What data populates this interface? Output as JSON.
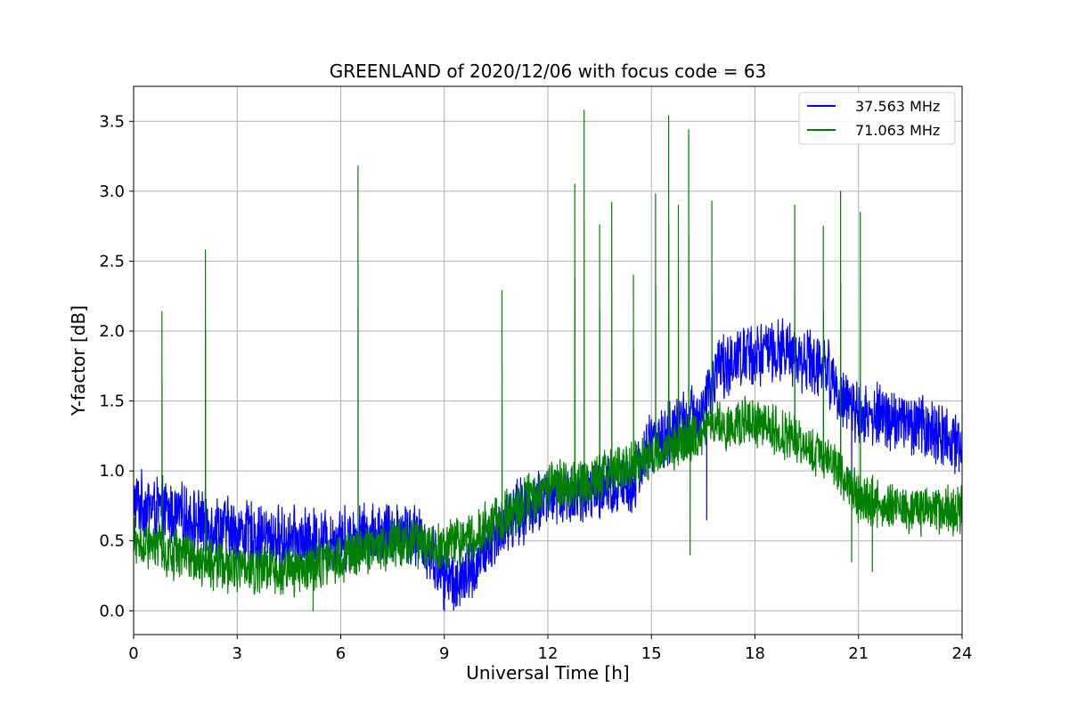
{
  "chart_data": {
    "type": "line",
    "title": "GREENLAND of 2020/12/06 with focus code = 63",
    "xlabel": "Universal Time [h]",
    "ylabel": "Y-factor [dB]",
    "xlim": [
      0,
      24
    ],
    "ylim": [
      -0.17,
      3.75
    ],
    "xticks": [
      0,
      3,
      6,
      9,
      12,
      15,
      18,
      21,
      24
    ],
    "xtick_labels": [
      "0",
      "3",
      "6",
      "9",
      "12",
      "15",
      "18",
      "21",
      "24"
    ],
    "yticks": [
      0.0,
      0.5,
      1.0,
      1.5,
      2.0,
      2.5,
      3.0,
      3.5
    ],
    "ytick_labels": [
      "0.0",
      "0.5",
      "1.0",
      "1.5",
      "2.0",
      "2.5",
      "3.0",
      "3.5"
    ],
    "grid": true,
    "legend_position": "top-right",
    "series": [
      {
        "name": "37.563 MHz",
        "color": "#0000ff",
        "baseline": {
          "x": [
            0,
            1,
            2,
            3,
            4,
            5,
            6,
            7,
            8,
            8.5,
            9,
            9.5,
            10,
            10.5,
            11,
            12,
            13,
            14,
            14.5,
            15,
            16,
            16.5,
            17,
            18,
            19,
            20,
            20.5,
            21,
            22,
            23,
            24
          ],
          "y": [
            0.78,
            0.7,
            0.63,
            0.57,
            0.52,
            0.5,
            0.52,
            0.55,
            0.58,
            0.45,
            0.25,
            0.2,
            0.35,
            0.55,
            0.68,
            0.82,
            0.82,
            0.88,
            0.95,
            1.2,
            1.35,
            1.45,
            1.75,
            1.85,
            1.85,
            1.75,
            1.55,
            1.4,
            1.38,
            1.3,
            1.2
          ]
        },
        "noise_amplitude": 0.26,
        "dips": [
          {
            "x": 16.6,
            "y": 0.65
          },
          {
            "x": 20.8,
            "y": 0.95
          },
          {
            "x": 9.0,
            "y": 0.0
          }
        ]
      },
      {
        "name": "71.063 MHz",
        "color": "#008000",
        "baseline": {
          "x": [
            0,
            1,
            2,
            3,
            4,
            5,
            6,
            7,
            8,
            9,
            10,
            11,
            12,
            13,
            14,
            15,
            16,
            17,
            18,
            19,
            20,
            20.5,
            21,
            22,
            23,
            24
          ],
          "y": [
            0.48,
            0.42,
            0.35,
            0.3,
            0.28,
            0.3,
            0.38,
            0.45,
            0.5,
            0.45,
            0.55,
            0.72,
            0.88,
            0.92,
            1.0,
            1.12,
            1.22,
            1.32,
            1.35,
            1.25,
            1.1,
            0.98,
            0.8,
            0.75,
            0.72,
            0.72
          ]
        },
        "noise_amplitude": 0.2,
        "spikes": [
          {
            "x": 0.82,
            "y": 2.14
          },
          {
            "x": 2.08,
            "y": 2.58
          },
          {
            "x": 6.5,
            "y": 3.18
          },
          {
            "x": 10.67,
            "y": 2.29
          },
          {
            "x": 12.78,
            "y": 3.05
          },
          {
            "x": 13.05,
            "y": 3.58
          },
          {
            "x": 13.5,
            "y": 2.76
          },
          {
            "x": 13.85,
            "y": 2.92
          },
          {
            "x": 14.48,
            "y": 2.4
          },
          {
            "x": 15.12,
            "y": 2.98
          },
          {
            "x": 15.5,
            "y": 3.54
          },
          {
            "x": 15.78,
            "y": 2.9
          },
          {
            "x": 16.08,
            "y": 3.44
          },
          {
            "x": 16.75,
            "y": 2.93
          },
          {
            "x": 19.15,
            "y": 2.9
          },
          {
            "x": 19.98,
            "y": 2.75
          },
          {
            "x": 20.48,
            "y": 3.0
          },
          {
            "x": 21.05,
            "y": 2.85
          }
        ],
        "dips": [
          {
            "x": 16.12,
            "y": 0.4
          },
          {
            "x": 20.8,
            "y": 0.35
          },
          {
            "x": 21.4,
            "y": 0.28
          },
          {
            "x": 5.2,
            "y": 0.0
          }
        ]
      }
    ]
  }
}
